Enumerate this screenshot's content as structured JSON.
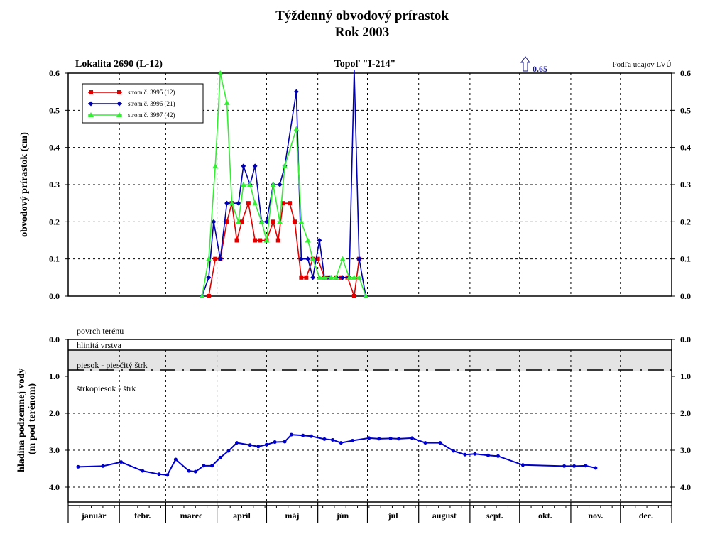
{
  "header": {
    "title": "Týždenný obvodový prírastok",
    "subtitle": "Rok 2003",
    "location": "Lokalita 2690 (L-12)",
    "tree": "Topoľ \"I-214\"",
    "source": "Podľa údajov LVÚ"
  },
  "chart_data": [
    {
      "type": "line",
      "ylabel": "obvodový prírastok (cm)",
      "ylim": [
        0,
        0.6
      ],
      "yticks": [
        "0.0",
        "0.1",
        "0.2",
        "0.3",
        "0.4",
        "0.5",
        "0.6"
      ],
      "legend_position": "top-left",
      "overflow_annotation": "0.65",
      "series": [
        {
          "name": "strom č. 3995 (12)",
          "color": "#e00000",
          "marker": "square",
          "points": [
            [
              85,
              0.0
            ],
            [
              89,
              0.1
            ],
            [
              92,
              0.1
            ],
            [
              96,
              0.2
            ],
            [
              99,
              0.25
            ],
            [
              102,
              0.15
            ],
            [
              105,
              0.2
            ],
            [
              109,
              0.25
            ],
            [
              113,
              0.15
            ],
            [
              116,
              0.15
            ],
            [
              120,
              0.15
            ],
            [
              124,
              0.2
            ],
            [
              127,
              0.15
            ],
            [
              130,
              0.25
            ],
            [
              134,
              0.25
            ],
            [
              137,
              0.2
            ],
            [
              141,
              0.05
            ],
            [
              144,
              0.05
            ],
            [
              148,
              0.1
            ],
            [
              151,
              0.1
            ],
            [
              155,
              0.05
            ],
            [
              158,
              0.05
            ],
            [
              162,
              0.05
            ],
            [
              165,
              0.05
            ],
            [
              169,
              0.05
            ],
            [
              173,
              0.0
            ],
            [
              176,
              0.1
            ]
          ]
        },
        {
          "name": "strom č. 3996 (21)",
          "color": "#0000b0",
          "marker": "diamond",
          "points": [
            [
              81,
              0.0
            ],
            [
              85,
              0.05
            ],
            [
              88,
              0.2
            ],
            [
              92,
              0.1
            ],
            [
              96,
              0.25
            ],
            [
              99,
              0.25
            ],
            [
              103,
              0.25
            ],
            [
              106,
              0.35
            ],
            [
              110,
              0.3
            ],
            [
              113,
              0.35
            ],
            [
              117,
              0.2
            ],
            [
              120,
              0.2
            ],
            [
              124,
              0.3
            ],
            [
              128,
              0.3
            ],
            [
              131,
              0.35
            ],
            [
              138,
              0.55
            ],
            [
              141,
              0.1
            ],
            [
              145,
              0.1
            ],
            [
              148,
              0.05
            ],
            [
              152,
              0.15
            ],
            [
              155,
              0.05
            ],
            [
              158,
              0.05
            ],
            [
              162,
              0.05
            ],
            [
              166,
              0.05
            ],
            [
              170,
              0.05
            ],
            [
              173,
              0.65
            ],
            [
              176,
              0.1
            ],
            [
              180,
              0.0
            ]
          ]
        },
        {
          "name": "strom č. 3997 (42)",
          "color": "#33ee33",
          "marker": "triangle",
          "points": [
            [
              81,
              0.0
            ],
            [
              85,
              0.1
            ],
            [
              89,
              0.35
            ],
            [
              92,
              0.6
            ],
            [
              96,
              0.52
            ],
            [
              99,
              0.25
            ],
            [
              103,
              0.2
            ],
            [
              106,
              0.3
            ],
            [
              110,
              0.3
            ],
            [
              113,
              0.25
            ],
            [
              117,
              0.2
            ],
            [
              120,
              0.15
            ],
            [
              124,
              0.3
            ],
            [
              128,
              0.2
            ],
            [
              131,
              0.35
            ],
            [
              138,
              0.45
            ],
            [
              141,
              0.2
            ],
            [
              145,
              0.15
            ],
            [
              148,
              0.1
            ],
            [
              152,
              0.05
            ],
            [
              155,
              0.05
            ],
            [
              159,
              0.05
            ],
            [
              162,
              0.05
            ],
            [
              166,
              0.1
            ],
            [
              170,
              0.05
            ],
            [
              173,
              0.05
            ],
            [
              176,
              0.05
            ],
            [
              180,
              0.0
            ]
          ]
        }
      ]
    },
    {
      "type": "line",
      "ylabel": "hladina podzemnej vody (m pod terénom)",
      "ylim": [
        0,
        4.5
      ],
      "yticks": [
        "0.0",
        "1.0",
        "2.0",
        "3.0",
        "4.0"
      ],
      "inverted": true,
      "layers": {
        "surface": "povrch terénu",
        "clay": "hlinitá vrstva",
        "sand_gravel": "piesok - piesčitý štrk",
        "gravel": "štrkopiesok - štrk"
      },
      "clay_depth": 0.3,
      "boundary_depth": 0.9,
      "months": [
        "január",
        "febr.",
        "marec",
        "apríl",
        "máj",
        "jún",
        "júl",
        "august",
        "sept.",
        "okt.",
        "nov.",
        "dec."
      ],
      "series": [
        {
          "name": "",
          "color": "#0000cc",
          "points": [
            [
              6,
              3.45
            ],
            [
              21,
              3.43
            ],
            [
              32,
              3.32
            ],
            [
              45,
              3.56
            ],
            [
              55,
              3.65
            ],
            [
              60,
              3.67
            ],
            [
              65,
              3.25
            ],
            [
              73,
              3.56
            ],
            [
              77,
              3.58
            ],
            [
              82,
              3.42
            ],
            [
              87,
              3.42
            ],
            [
              92,
              3.2
            ],
            [
              97,
              3.02
            ],
            [
              102,
              2.8
            ],
            [
              110,
              2.86
            ],
            [
              115,
              2.9
            ],
            [
              120,
              2.85
            ],
            [
              125,
              2.78
            ],
            [
              131,
              2.77
            ],
            [
              135,
              2.58
            ],
            [
              142,
              2.6
            ],
            [
              147,
              2.62
            ],
            [
              155,
              2.7
            ],
            [
              160,
              2.72
            ],
            [
              165,
              2.8
            ],
            [
              172,
              2.74
            ],
            [
              182,
              2.67
            ],
            [
              188,
              2.69
            ],
            [
              195,
              2.68
            ],
            [
              200,
              2.69
            ],
            [
              208,
              2.67
            ],
            [
              216,
              2.8
            ],
            [
              225,
              2.8
            ],
            [
              233,
              3.02
            ],
            [
              240,
              3.12
            ],
            [
              246,
              3.1
            ],
            [
              254,
              3.14
            ],
            [
              260,
              3.16
            ],
            [
              275,
              3.4
            ],
            [
              300,
              3.43
            ],
            [
              306,
              3.43
            ],
            [
              313,
              3.42
            ],
            [
              319,
              3.48
            ]
          ]
        }
      ]
    }
  ]
}
